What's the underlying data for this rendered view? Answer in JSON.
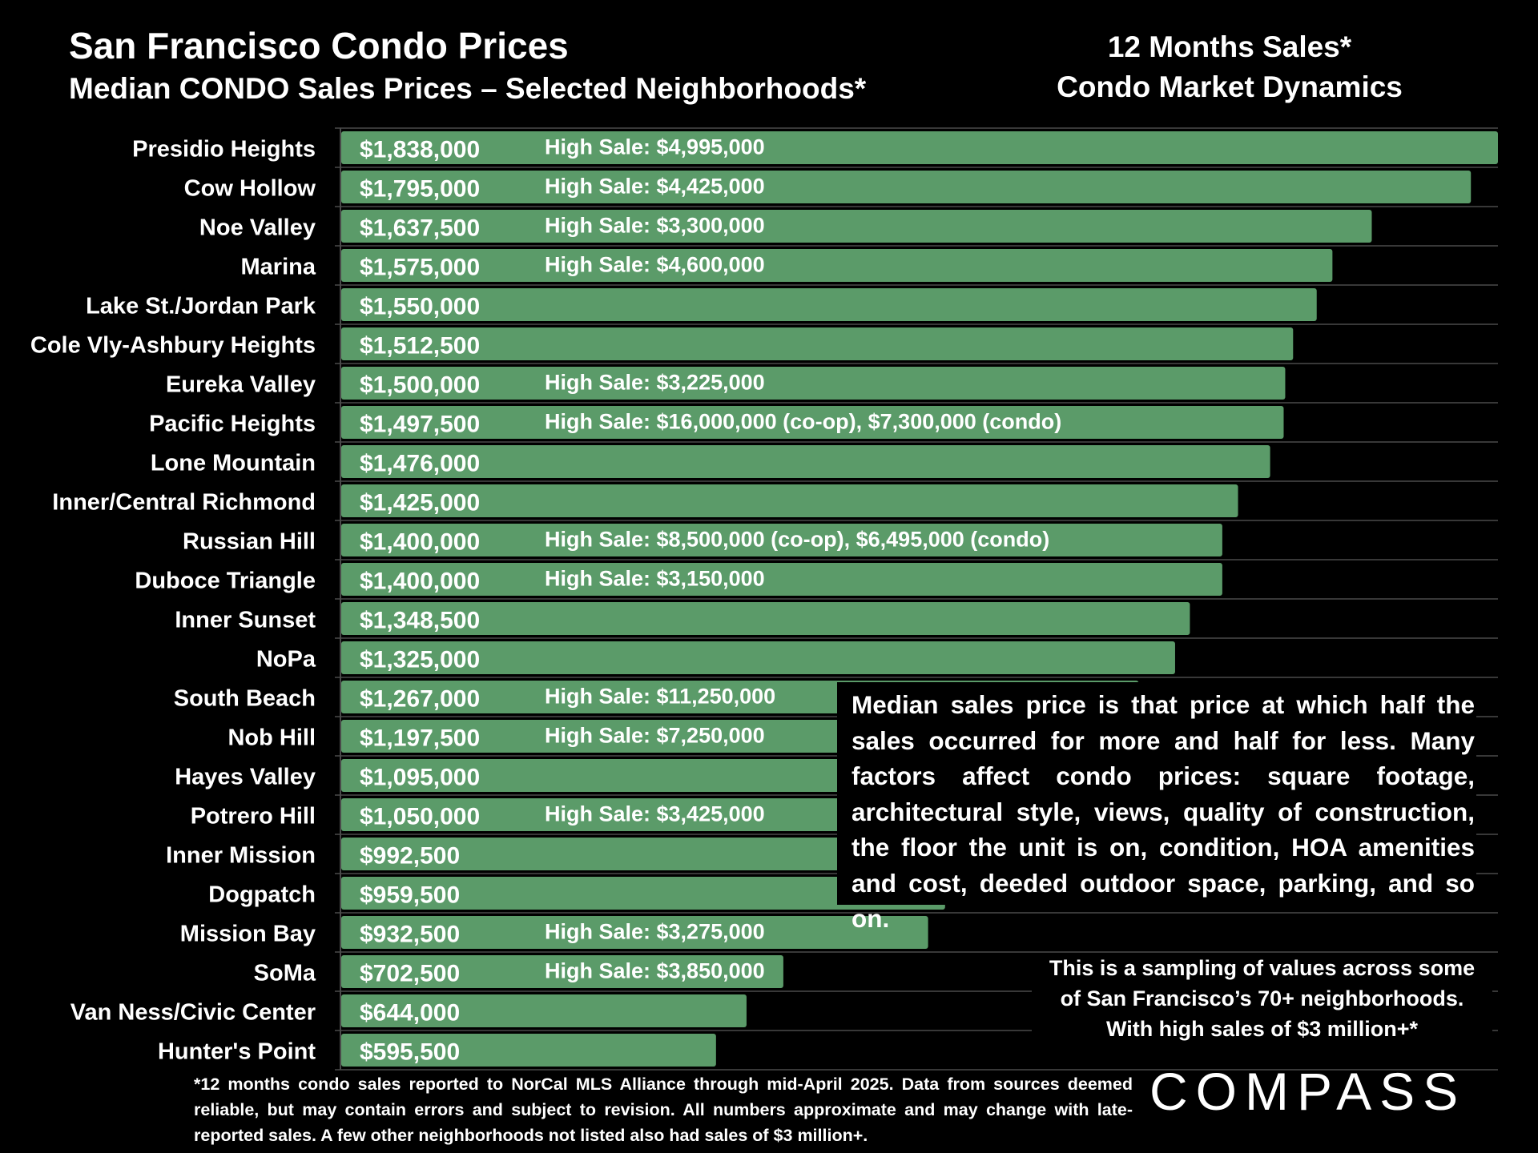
{
  "header": {
    "title": "San Francisco Condo Prices",
    "subtitle": "Median CONDO Sales Prices – Selected Neighborhoods*",
    "right_title_line1": "12 Months Sales*",
    "right_title_line2": "Condo Market Dynamics"
  },
  "note": {
    "text": "Median sales price is that price at which half the sales occurred for more and half for less. Many factors affect condo prices: square footage, architectural style, views, quality of construction, the floor the unit is on, condition, HOA amenities and cost, deeded outdoor space, parking, and so on."
  },
  "sampling": {
    "line1": "This is a sampling of values across some",
    "line2": "of San Francisco’s 70+ neighborhoods.",
    "line3": "With high sales of $3 million+*"
  },
  "footnote": {
    "text": "*12 months condo sales reported to NorCal MLS Alliance through mid-April 2025. Data from sources deemed reliable, but may contain errors and subject to revision. All numbers approximate and may change with late-reported sales. A few other neighborhoods not listed also had sales of $3 million+."
  },
  "logo": {
    "text": "COMPASS"
  },
  "colors": {
    "bar": "#5b9b69",
    "background": "#000000",
    "text": "#ffffff",
    "gridline": "#4a4a4a"
  },
  "chart_data": {
    "type": "bar",
    "orientation": "horizontal",
    "title": "San Francisco Condo Prices",
    "subtitle": "Median CONDO Sales Prices – Selected Neighborhoods*",
    "categories": [
      "Presidio Heights",
      "Cow Hollow",
      "Noe Valley",
      "Marina",
      "Lake St./Jordan Park",
      "Cole Vly-Ashbury Heights",
      "Eureka Valley",
      "Pacific Heights",
      "Lone Mountain",
      "Inner/Central Richmond",
      "Russian Hill",
      "Duboce Triangle",
      "Inner Sunset",
      "NoPa",
      "South Beach",
      "Nob Hill",
      "Hayes Valley",
      "Potrero Hill",
      "Inner Mission",
      "Dogpatch",
      "Mission Bay",
      "SoMa",
      "Van Ness/Civic Center",
      "Hunter's Point"
    ],
    "values": [
      1838000,
      1795000,
      1637500,
      1575000,
      1550000,
      1512500,
      1500000,
      1497500,
      1476000,
      1425000,
      1400000,
      1400000,
      1348500,
      1325000,
      1267000,
      1197500,
      1095000,
      1050000,
      992500,
      959500,
      932500,
      702500,
      644000,
      595500
    ],
    "value_labels": [
      "$1,838,000",
      "$1,795,000",
      "$1,637,500",
      "$1,575,000",
      "$1,550,000",
      "$1,512,500",
      "$1,500,000",
      "$1,497,500",
      "$1,476,000",
      "$1,425,000",
      "$1,400,000",
      "$1,400,000",
      "$1,348,500",
      "$1,325,000",
      "$1,267,000",
      "$1,197,500",
      "$1,095,000",
      "$1,050,000",
      "$992,500",
      "$959,500",
      "$932,500",
      "$702,500",
      "$644,000",
      "$595,500"
    ],
    "high_sale_prefix": "High Sale:",
    "high_sales": [
      "$4,995,000",
      "$4,425,000",
      "$3,300,000",
      "$4,600,000",
      "",
      "",
      "$3,225,000",
      "$16,000,000 (co-op), $7,300,000 (condo)",
      "",
      "",
      "$8,500,000 (co-op), $6,495,000 (condo)",
      "$3,150,000",
      "",
      "",
      "$11,250,000",
      "$7,250,000",
      "",
      "$3,425,000",
      "",
      "",
      "$3,275,000",
      "$3,850,000",
      "",
      ""
    ],
    "xlim": [
      0,
      1838000
    ],
    "grid": true,
    "legend": "none"
  }
}
